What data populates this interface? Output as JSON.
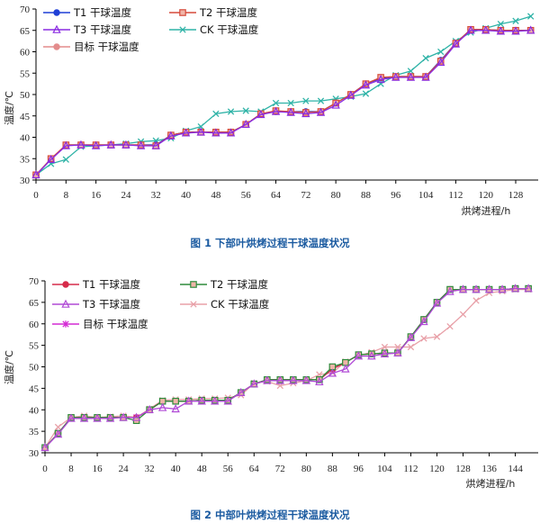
{
  "chart_data": [
    {
      "type": "line",
      "caption": "图 1  下部叶烘烤过程干球温度状况",
      "ylabel": "温度/℃",
      "xlabel": "烘烤进程/h",
      "xlim": [
        0,
        134
      ],
      "ylim": [
        30,
        70
      ],
      "xticks": [
        0,
        8,
        16,
        24,
        32,
        40,
        48,
        56,
        64,
        72,
        80,
        88,
        96,
        104,
        112,
        120,
        128
      ],
      "yticks": [
        30,
        35,
        40,
        45,
        50,
        55,
        60,
        65,
        70
      ],
      "legend_position": "top-left",
      "series": [
        {
          "name": "T1 干球温度",
          "color": "#1f3fd6",
          "marker": "circle",
          "x": [
            0,
            4,
            8,
            12,
            16,
            20,
            24,
            28,
            32,
            36,
            40,
            44,
            48,
            52,
            56,
            60,
            64,
            68,
            72,
            76,
            80,
            84,
            88,
            92,
            96,
            100,
            104,
            108,
            112,
            116,
            120,
            124,
            128,
            132
          ],
          "y": [
            31.2,
            34.8,
            38.2,
            38.2,
            38.2,
            38.2,
            38.2,
            38.2,
            38.2,
            40.5,
            41.2,
            41.2,
            41.2,
            41.2,
            43,
            45.5,
            46,
            46,
            46,
            46,
            48,
            50,
            52.5,
            53.8,
            54.2,
            54.2,
            54.2,
            58,
            62,
            65.2,
            65.2,
            65,
            65,
            65
          ]
        },
        {
          "name": "T2   干球温度",
          "color": "#d64a3a",
          "marker": "square",
          "x": [
            0,
            4,
            8,
            12,
            16,
            20,
            24,
            28,
            32,
            36,
            40,
            44,
            48,
            52,
            56,
            60,
            64,
            68,
            72,
            76,
            80,
            84,
            88,
            92,
            96,
            100,
            104,
            108,
            112,
            116,
            120,
            124,
            128,
            132
          ],
          "y": [
            31.2,
            35,
            38.2,
            38.2,
            38.2,
            38.2,
            38.2,
            38.2,
            38,
            40.5,
            41.2,
            41.2,
            41.2,
            41.2,
            43,
            45.5,
            46.2,
            46,
            45.8,
            46,
            48,
            50,
            52.5,
            54,
            54.2,
            54.2,
            54.2,
            57.8,
            62,
            65.2,
            65.2,
            65,
            65,
            65
          ]
        },
        {
          "name": "T3 干球温度",
          "color": "#8a2be2",
          "marker": "triangle",
          "x": [
            0,
            4,
            8,
            12,
            16,
            20,
            24,
            28,
            32,
            36,
            40,
            44,
            48,
            52,
            56,
            60,
            64,
            68,
            72,
            76,
            80,
            84,
            88,
            92,
            96,
            100,
            104,
            108,
            112,
            116,
            120,
            124,
            128,
            132
          ],
          "y": [
            31.2,
            34.8,
            38,
            38.2,
            38,
            38.2,
            38.2,
            38,
            38,
            40.3,
            41,
            41.2,
            41,
            41,
            43,
            45.3,
            46,
            45.8,
            45.5,
            45.8,
            47.5,
            49.8,
            52.2,
            53.5,
            54,
            54,
            54,
            57.5,
            61.8,
            65,
            65,
            64.8,
            64.8,
            65
          ]
        },
        {
          "name": "CK 干球温度",
          "color": "#2fb3a7",
          "marker": "x",
          "x": [
            0,
            4,
            8,
            12,
            16,
            20,
            24,
            28,
            32,
            36,
            40,
            44,
            48,
            52,
            56,
            60,
            64,
            68,
            72,
            76,
            80,
            84,
            88,
            92,
            96,
            100,
            104,
            108,
            112,
            116,
            120,
            124,
            128,
            132
          ],
          "y": [
            31.2,
            33.8,
            34.8,
            37.8,
            38,
            38.2,
            38.5,
            39,
            39.2,
            39.8,
            41.5,
            42.5,
            45.5,
            46,
            46.2,
            46,
            48,
            48,
            48.5,
            48.5,
            49,
            49.5,
            50.2,
            52.5,
            54.5,
            55.5,
            58.5,
            60,
            62.5,
            64.5,
            65.5,
            66.5,
            67.2,
            68.3
          ]
        },
        {
          "name": "目标 干球温度",
          "color": "#e38c8c",
          "marker": "circle",
          "x": [
            0,
            4,
            8,
            12,
            16,
            20,
            24,
            28,
            32,
            36,
            40,
            44,
            48,
            52,
            56,
            60,
            64,
            68,
            72,
            76,
            80,
            84,
            88,
            92,
            96,
            100,
            104,
            108,
            112,
            116,
            120,
            124,
            128,
            132
          ],
          "y": [
            31.2,
            35,
            38.2,
            38.2,
            38.2,
            38.2,
            38.2,
            38.2,
            38.2,
            40.5,
            41.2,
            41.2,
            41.2,
            41.2,
            43,
            45.5,
            46,
            46,
            46,
            46,
            48,
            50,
            52.5,
            54,
            54.2,
            54.2,
            54.2,
            58,
            62,
            65.2,
            65.2,
            65,
            65,
            65
          ]
        }
      ]
    },
    {
      "type": "line",
      "caption": "图 2  中部叶烘烤过程干球温度状况",
      "ylabel": "温度/℃",
      "xlabel": "烘烤进程/h",
      "xlim": [
        0,
        151
      ],
      "ylim": [
        30,
        70
      ],
      "xticks": [
        0,
        8,
        16,
        24,
        32,
        40,
        48,
        56,
        64,
        72,
        80,
        88,
        96,
        104,
        112,
        120,
        128,
        136,
        144
      ],
      "yticks": [
        30,
        35,
        40,
        45,
        50,
        55,
        60,
        65,
        70
      ],
      "legend_position": "top-left",
      "series": [
        {
          "name": "T1 干球温度",
          "color": "#d62b4a",
          "marker": "circle",
          "x": [
            0,
            4,
            8,
            12,
            16,
            20,
            24,
            28,
            32,
            36,
            40,
            44,
            48,
            52,
            56,
            60,
            64,
            68,
            72,
            76,
            80,
            84,
            88,
            92,
            96,
            100,
            104,
            108,
            112,
            116,
            120,
            124,
            128,
            132,
            136,
            140,
            144,
            148
          ],
          "y": [
            31.2,
            34.5,
            38.2,
            38.2,
            38.2,
            38.2,
            38.2,
            38.2,
            40,
            42,
            42,
            42,
            42.2,
            42.2,
            42.2,
            44,
            46,
            47,
            47,
            47,
            47,
            47,
            49.5,
            51,
            52.8,
            53,
            53.2,
            53.2,
            57,
            61,
            65,
            68,
            68,
            68,
            68,
            68,
            68.2,
            68.2
          ]
        },
        {
          "name": "T2    干球温度",
          "color": "#2e8b3c",
          "marker": "square",
          "x": [
            0,
            4,
            8,
            12,
            16,
            20,
            24,
            28,
            32,
            36,
            40,
            44,
            48,
            52,
            56,
            60,
            64,
            68,
            72,
            76,
            80,
            84,
            88,
            92,
            96,
            100,
            104,
            108,
            112,
            116,
            120,
            124,
            128,
            132,
            136,
            140,
            144,
            148
          ],
          "y": [
            31.2,
            34.5,
            38.2,
            38.2,
            38.2,
            38.2,
            38.2,
            37.5,
            40,
            42,
            42,
            42,
            42.2,
            42.2,
            42.2,
            44,
            46,
            47,
            47,
            47,
            47,
            47,
            50,
            51,
            52.8,
            53,
            53.2,
            53.2,
            57,
            61,
            65,
            68,
            68,
            68,
            68,
            68,
            68.2,
            68.2
          ]
        },
        {
          "name": "T3 干球温度",
          "color": "#b04ad6",
          "marker": "triangle",
          "x": [
            0,
            4,
            8,
            12,
            16,
            20,
            24,
            28,
            32,
            36,
            40,
            44,
            48,
            52,
            56,
            60,
            64,
            68,
            72,
            76,
            80,
            84,
            88,
            92,
            96,
            100,
            104,
            108,
            112,
            116,
            120,
            124,
            128,
            132,
            136,
            140,
            144,
            148
          ],
          "y": [
            31.2,
            34.3,
            38,
            38,
            38,
            38,
            38.2,
            38.2,
            40,
            40.5,
            40.2,
            42,
            42,
            42,
            42,
            44,
            46,
            46.8,
            46.8,
            46.8,
            46.8,
            46.5,
            48.5,
            49.5,
            52.5,
            52.5,
            53,
            53.2,
            56.8,
            60.5,
            64.8,
            67.5,
            68,
            68,
            68,
            68,
            68.2,
            68.2
          ]
        },
        {
          "name": "CK 干球温度",
          "color": "#e8a0a8",
          "marker": "x",
          "x": [
            0,
            4,
            8,
            12,
            16,
            20,
            24,
            28,
            32,
            36,
            40,
            44,
            48,
            52,
            56,
            60,
            64,
            68,
            72,
            76,
            80,
            84,
            88,
            92,
            96,
            100,
            104,
            108,
            112,
            116,
            120,
            124,
            128,
            132,
            136,
            140,
            144,
            148
          ],
          "y": [
            31.2,
            36,
            38.2,
            38.6,
            38.2,
            38.4,
            38.6,
            38.2,
            40.2,
            42.2,
            42.4,
            42.4,
            42.6,
            42.6,
            42.8,
            43.4,
            46.2,
            46.6,
            45.6,
            46.2,
            46.8,
            48.2,
            48.6,
            51.2,
            52.6,
            53.4,
            54.6,
            54.6,
            54.6,
            56.6,
            57,
            59.4,
            62.2,
            65.4,
            67.2,
            67.6,
            68,
            68
          ]
        },
        {
          "name": "目标 干球温度",
          "color": "#d42ad4",
          "marker": "star",
          "x": [
            0,
            4,
            8,
            12,
            16,
            20,
            24,
            28,
            32,
            36,
            40,
            44,
            48,
            52,
            56,
            60,
            64,
            68,
            72,
            76,
            80,
            84,
            88,
            92,
            96,
            100,
            104,
            108,
            112,
            116,
            120,
            124,
            128,
            132,
            136,
            140,
            144,
            148
          ],
          "y": [
            31.2,
            34.5,
            38.2,
            38.2,
            38.2,
            38.2,
            38.2,
            38.2,
            40,
            42,
            42,
            42,
            42.2,
            42.2,
            42.2,
            44,
            46,
            47,
            47,
            47,
            47,
            47,
            49.5,
            51,
            52.8,
            53,
            53.2,
            53.2,
            57,
            61,
            65,
            68,
            68,
            68,
            68,
            68,
            68.2,
            68.2
          ]
        }
      ]
    }
  ]
}
